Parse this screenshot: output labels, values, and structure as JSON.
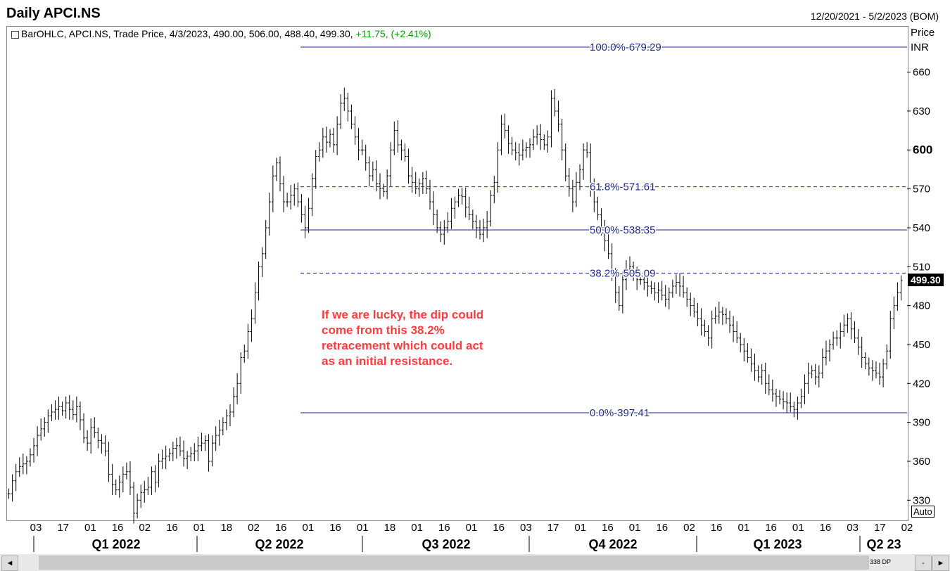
{
  "header": {
    "title": "Daily APCI.NS",
    "date_range": "12/20/2021 - 5/2/2023 (BOM)"
  },
  "info": {
    "text": "BarOHLC, APCI.NS, Trade Price, 4/3/2023, 490.00, 506.00, 488.40, 499.30,",
    "change": "+11.75, (+2.41%)"
  },
  "price_axis": {
    "title": "Price",
    "unit": "INR",
    "last_price": "499.30",
    "auto": "Auto"
  },
  "annotation": {
    "lines": [
      "If we are lucky, the dip could",
      "come from this 38.2%",
      "retracement which could act",
      "as an initial resistance."
    ]
  },
  "scrollbar": {
    "count": "338 DP"
  },
  "colors": {
    "fib": "#1f2a8c",
    "bars": "#000000",
    "annot": "#ff3b3b",
    "up": "#00a000"
  },
  "chart_data": {
    "type": "bar",
    "title": "Daily APCI.NS",
    "ylim": [
      315,
      695
    ],
    "yticks": [
      330,
      360,
      390,
      420,
      450,
      480,
      510,
      540,
      570,
      600,
      630,
      660
    ],
    "x_ticks": [
      "03",
      "17",
      "01",
      "16",
      "02",
      "16",
      "01",
      "18",
      "02",
      "16",
      "01",
      "16",
      "01",
      "18",
      "01",
      "16",
      "01",
      "16",
      "03",
      "17",
      "01",
      "16",
      "01",
      "16",
      "02",
      "16",
      "01",
      "16",
      "01",
      "16",
      "03",
      "17",
      "02"
    ],
    "quarters": [
      "Q1 2022",
      "Q2 2022",
      "Q3 2022",
      "Q4 2022",
      "Q1 2023",
      "Q2 23"
    ],
    "fib_levels": [
      {
        "label": "100.0%",
        "value": 679.29,
        "text": "679.29",
        "style": "solid"
      },
      {
        "label": "61.8%",
        "value": 571.61,
        "text": "571.61",
        "style": "dashed"
      },
      {
        "label": "50.0%",
        "value": 538.35,
        "text": "538.35",
        "style": "solid"
      },
      {
        "label": "38.2%",
        "value": 505.09,
        "text": "505.09",
        "style": "dashed"
      },
      {
        "label": "0.0%",
        "value": 397.41,
        "text": "397.41",
        "style": "solid"
      }
    ],
    "closes": [
      335,
      345,
      352,
      356,
      358,
      360,
      365,
      372,
      380,
      385,
      390,
      395,
      398,
      400,
      402,
      399,
      405,
      400,
      396,
      402,
      392,
      378,
      374,
      386,
      382,
      376,
      374,
      368,
      350,
      342,
      338,
      344,
      350,
      352,
      340,
      320,
      330,
      336,
      338,
      340,
      352,
      344,
      360,
      362,
      364,
      366,
      370,
      372,
      368,
      362,
      364,
      366,
      368,
      372,
      374,
      376,
      360,
      374,
      380,
      384,
      390,
      395,
      398,
      410,
      420,
      440,
      445,
      460,
      470,
      490,
      510,
      520,
      540,
      560,
      580,
      590,
      574,
      560,
      560,
      565,
      570,
      560,
      550,
      540,
      555,
      578,
      595,
      600,
      610,
      606,
      612,
      604,
      620,
      636,
      640,
      630,
      620,
      610,
      600,
      600,
      590,
      580,
      585,
      574,
      570,
      568,
      580,
      600,
      615,
      604,
      600,
      595,
      580,
      575,
      570,
      574,
      578,
      570,
      560,
      550,
      540,
      535,
      540,
      545,
      555,
      560,
      565,
      564,
      556,
      550,
      545,
      540,
      535,
      540,
      545,
      565,
      575,
      600,
      620,
      615,
      605,
      600,
      598,
      596,
      600,
      602,
      604,
      610,
      612,
      608,
      604,
      610,
      640,
      630,
      620,
      600,
      580,
      570,
      560,
      575,
      585,
      600,
      598,
      570,
      560,
      550,
      540,
      530,
      520,
      505,
      490,
      480,
      500,
      508,
      510,
      505,
      500,
      500,
      498,
      495,
      493,
      490,
      492,
      488,
      485,
      490,
      495,
      498,
      495,
      490,
      485,
      480,
      475,
      470,
      465,
      460,
      455,
      470,
      472,
      475,
      473,
      470,
      465,
      460,
      455,
      450,
      445,
      440,
      435,
      430,
      425,
      430,
      420,
      415,
      412,
      410,
      408,
      406,
      405,
      402,
      400,
      405,
      410,
      420,
      428,
      430,
      425,
      428,
      440,
      445,
      450,
      455,
      455,
      460,
      465,
      470,
      462,
      455,
      448,
      440,
      435,
      432,
      430,
      428,
      425,
      435,
      445,
      470,
      480,
      490,
      499.3
    ]
  }
}
